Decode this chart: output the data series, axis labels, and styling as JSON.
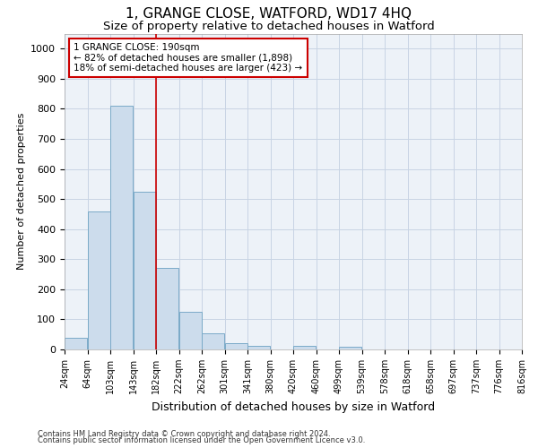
{
  "title": "1, GRANGE CLOSE, WATFORD, WD17 4HQ",
  "subtitle": "Size of property relative to detached houses in Watford",
  "xlabel": "Distribution of detached houses by size in Watford",
  "ylabel": "Number of detached properties",
  "footnote1": "Contains HM Land Registry data © Crown copyright and database right 2024.",
  "footnote2": "Contains public sector information licensed under the Open Government Licence v3.0.",
  "bar_left_edges": [
    0,
    1,
    2,
    3,
    4,
    5,
    6,
    7,
    8,
    9,
    10,
    11,
    12,
    13,
    14,
    15,
    16,
    17,
    18,
    19
  ],
  "bar_heights": [
    40,
    460,
    810,
    525,
    270,
    125,
    55,
    22,
    12,
    0,
    12,
    0,
    10,
    0,
    0,
    0,
    0,
    0,
    0,
    0
  ],
  "bar_color": "#ccdcec",
  "bar_edge_color": "#7aaac8",
  "tick_labels": [
    "24sqm",
    "64sqm",
    "103sqm",
    "143sqm",
    "182sqm",
    "222sqm",
    "262sqm",
    "301sqm",
    "341sqm",
    "380sqm",
    "420sqm",
    "460sqm",
    "499sqm",
    "539sqm",
    "578sqm",
    "618sqm",
    "658sqm",
    "697sqm",
    "737sqm",
    "776sqm",
    "816sqm"
  ],
  "ylim": [
    0,
    1050
  ],
  "yticks": [
    0,
    100,
    200,
    300,
    400,
    500,
    600,
    700,
    800,
    900,
    1000
  ],
  "property_bar_index": 4,
  "property_line_x": 4.0,
  "annotation_text": "1 GRANGE CLOSE: 190sqm\n← 82% of detached houses are smaller (1,898)\n18% of semi-detached houses are larger (423) →",
  "annotation_box_color": "#ffffff",
  "annotation_box_edge_color": "#cc0000",
  "grid_color": "#c8d4e4",
  "background_color": "#edf2f8",
  "title_fontsize": 11,
  "subtitle_fontsize": 9.5,
  "xlabel_fontsize": 9,
  "ylabel_fontsize": 8,
  "tick_fontsize": 7,
  "annotation_fontsize": 7.5,
  "footnote_fontsize": 6
}
